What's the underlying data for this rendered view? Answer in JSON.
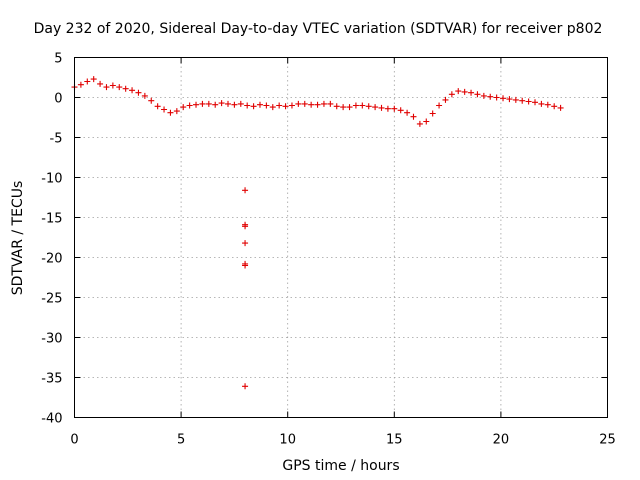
{
  "chart_data": {
    "type": "scatter",
    "title": "Day 232 of 2020, Sidereal Day-to-day VTEC variation (SDTVAR) for receiver p802",
    "xlabel": "GPS time / hours",
    "ylabel": "SDTVAR / TECUs",
    "xlim": [
      0,
      25
    ],
    "ylim": [
      -40,
      5
    ],
    "xticks": [
      0,
      5,
      10,
      15,
      20,
      25
    ],
    "yticks": [
      5,
      0,
      -5,
      -10,
      -15,
      -20,
      -25,
      -30,
      -35,
      -40
    ],
    "grid": true,
    "marker": "+",
    "color": "#e00000",
    "series": [
      {
        "name": "SDTVAR",
        "x": [
          0.0,
          0.3,
          0.6,
          0.9,
          1.2,
          1.5,
          1.8,
          2.1,
          2.4,
          2.7,
          3.0,
          3.3,
          3.6,
          3.9,
          4.2,
          4.5,
          4.8,
          5.1,
          5.4,
          5.7,
          6.0,
          6.3,
          6.6,
          6.9,
          7.2,
          7.5,
          7.8,
          8.1,
          8.4,
          8.7,
          9.0,
          9.3,
          9.6,
          9.9,
          10.2,
          10.5,
          10.8,
          11.1,
          11.4,
          11.7,
          12.0,
          12.3,
          12.6,
          12.9,
          13.2,
          13.5,
          13.8,
          14.1,
          14.4,
          14.7,
          15.0,
          15.3,
          15.6,
          15.9,
          16.2,
          16.5,
          16.8,
          17.1,
          17.4,
          17.7,
          18.0,
          18.3,
          18.6,
          18.9,
          19.2,
          19.5,
          19.8,
          20.1,
          20.4,
          20.7,
          21.0,
          21.3,
          21.6,
          21.9,
          22.2,
          22.5,
          22.8,
          8.0,
          8.0,
          8.0,
          8.0,
          8.0,
          8.0,
          8.0
        ],
        "y": [
          1.3,
          1.6,
          2.0,
          2.3,
          1.7,
          1.3,
          1.5,
          1.3,
          1.1,
          0.9,
          0.6,
          0.2,
          -0.4,
          -1.1,
          -1.5,
          -1.9,
          -1.7,
          -1.2,
          -1.0,
          -0.9,
          -0.8,
          -0.8,
          -0.9,
          -0.7,
          -0.8,
          -0.9,
          -0.8,
          -1.0,
          -1.1,
          -0.9,
          -1.0,
          -1.2,
          -1.0,
          -1.1,
          -1.0,
          -0.8,
          -0.8,
          -0.9,
          -0.9,
          -0.8,
          -0.8,
          -1.1,
          -1.2,
          -1.2,
          -1.0,
          -1.0,
          -1.1,
          -1.2,
          -1.3,
          -1.4,
          -1.4,
          -1.6,
          -1.9,
          -2.4,
          -3.3,
          -3.0,
          -2.0,
          -1.0,
          -0.3,
          0.4,
          0.8,
          0.7,
          0.6,
          0.4,
          0.2,
          0.1,
          0.0,
          -0.1,
          -0.2,
          -0.3,
          -0.4,
          -0.5,
          -0.6,
          -0.8,
          -0.9,
          -1.1,
          -1.3,
          -11.6,
          -15.9,
          -16.1,
          -18.2,
          -20.8,
          -21.0,
          -36.1
        ]
      }
    ]
  }
}
